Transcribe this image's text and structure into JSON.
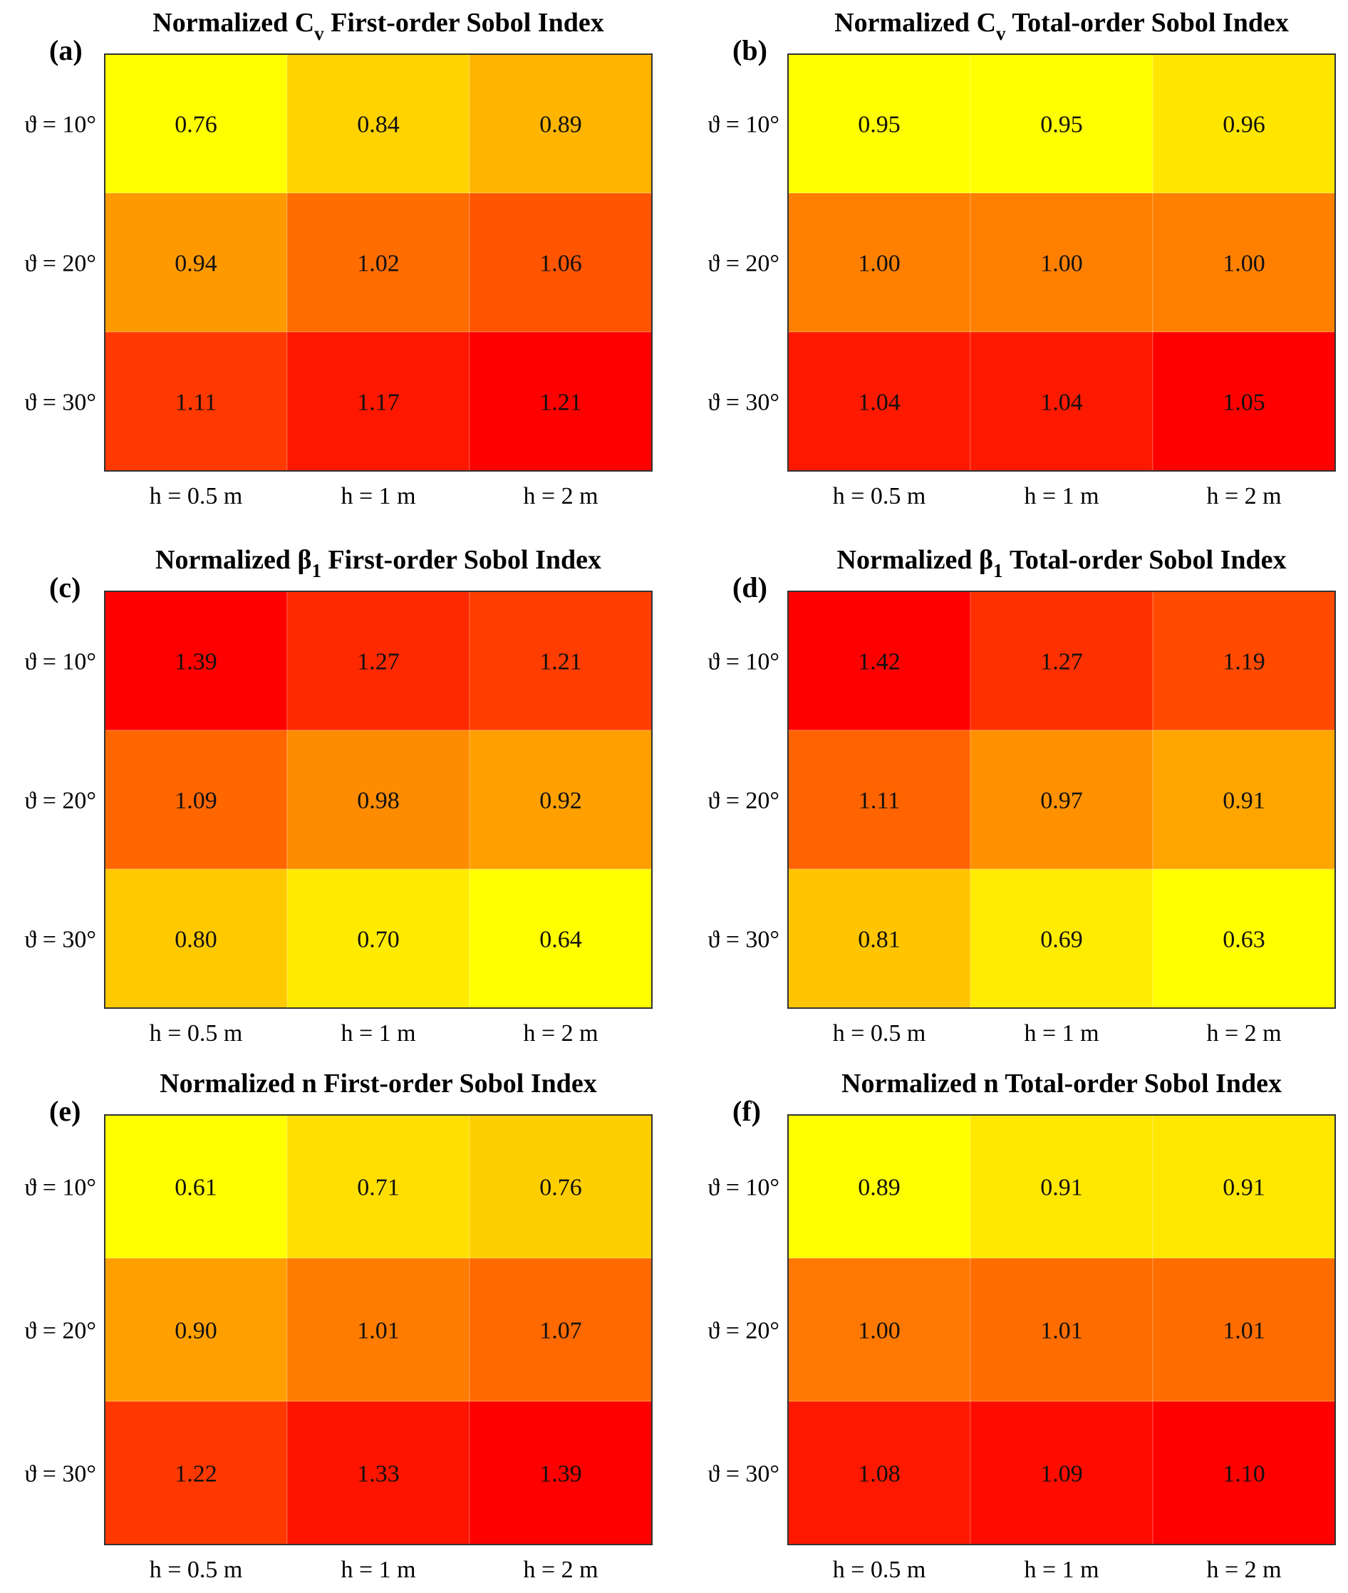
{
  "chart_data": [
    {
      "type": "heatmap",
      "panel_label": "(a)",
      "title_pre": "Normalized C",
      "title_sub": "v",
      "title_post": " First-order Sobol Index",
      "rows": [
        "ϑ = 10°",
        "ϑ = 20°",
        "ϑ = 30°"
      ],
      "cols": [
        "h = 0.5 m",
        "h = 1 m",
        "h = 2 m"
      ],
      "values": [
        [
          0.76,
          0.84,
          0.89
        ],
        [
          0.94,
          1.02,
          1.06
        ],
        [
          1.11,
          1.17,
          1.21
        ]
      ],
      "labels": [
        [
          "0.76",
          "0.84",
          "0.89"
        ],
        [
          "0.94",
          "1.02",
          "1.06"
        ],
        [
          "1.11",
          "1.17",
          "1.21"
        ]
      ]
    },
    {
      "type": "heatmap",
      "panel_label": "(b)",
      "title_pre": "Normalized C",
      "title_sub": "v",
      "title_post": " Total-order Sobol Index",
      "rows": [
        "ϑ = 10°",
        "ϑ = 20°",
        "ϑ = 30°"
      ],
      "cols": [
        "h = 0.5 m",
        "h = 1 m",
        "h = 2 m"
      ],
      "values": [
        [
          0.95,
          0.95,
          0.96
        ],
        [
          1.0,
          1.0,
          1.0
        ],
        [
          1.04,
          1.04,
          1.05
        ]
      ],
      "labels": [
        [
          "0.95",
          "0.95",
          "0.96"
        ],
        [
          "1.00",
          "1.00",
          "1.00"
        ],
        [
          "1.04",
          "1.04",
          "1.05"
        ]
      ]
    },
    {
      "type": "heatmap",
      "panel_label": "(c)",
      "title_pre": "Normalized β",
      "title_sub": "1",
      "title_post": " First-order Sobol Index",
      "rows": [
        "ϑ = 10°",
        "ϑ = 20°",
        "ϑ = 30°"
      ],
      "cols": [
        "h = 0.5 m",
        "h = 1 m",
        "h = 2 m"
      ],
      "values": [
        [
          1.39,
          1.27,
          1.21
        ],
        [
          1.09,
          0.98,
          0.92
        ],
        [
          0.8,
          0.7,
          0.64
        ]
      ],
      "labels": [
        [
          "1.39",
          "1.27",
          "1.21"
        ],
        [
          "1.09",
          "0.98",
          "0.92"
        ],
        [
          "0.80",
          "0.70",
          "0.64"
        ]
      ]
    },
    {
      "type": "heatmap",
      "panel_label": "(d)",
      "title_pre": "Normalized β",
      "title_sub": "1",
      "title_post": " Total-order Sobol Index",
      "rows": [
        "ϑ = 10°",
        "ϑ = 20°",
        "ϑ = 30°"
      ],
      "cols": [
        "h = 0.5 m",
        "h = 1 m",
        "h = 2 m"
      ],
      "values": [
        [
          1.42,
          1.27,
          1.19
        ],
        [
          1.11,
          0.97,
          0.91
        ],
        [
          0.81,
          0.69,
          0.63
        ]
      ],
      "labels": [
        [
          "1.42",
          "1.27",
          "1.19"
        ],
        [
          "1.11",
          "0.97",
          "0.91"
        ],
        [
          "0.81",
          "0.69",
          "0.63"
        ]
      ]
    },
    {
      "type": "heatmap",
      "panel_label": "(e)",
      "title_pre": "Normalized n First-order Sobol Index",
      "title_sub": "",
      "title_post": "",
      "rows": [
        "ϑ = 10°",
        "ϑ = 20°",
        "ϑ = 30°"
      ],
      "cols": [
        "h = 0.5 m",
        "h = 1 m",
        "h = 2 m"
      ],
      "values": [
        [
          0.61,
          0.71,
          0.76
        ],
        [
          0.9,
          1.01,
          1.07
        ],
        [
          1.22,
          1.33,
          1.39
        ]
      ],
      "labels": [
        [
          "0.61",
          "0.71",
          "0.76"
        ],
        [
          "0.90",
          "1.01",
          "1.07"
        ],
        [
          "1.22",
          "1.33",
          "1.39"
        ]
      ]
    },
    {
      "type": "heatmap",
      "panel_label": "(f)",
      "title_pre": "Normalized n Total-order Sobol Index",
      "title_sub": "",
      "title_post": "",
      "rows": [
        "ϑ = 10°",
        "ϑ = 20°",
        "ϑ = 30°"
      ],
      "cols": [
        "h = 0.5 m",
        "h = 1 m",
        "h = 2 m"
      ],
      "values": [
        [
          0.89,
          0.91,
          0.91
        ],
        [
          1.0,
          1.01,
          1.01
        ],
        [
          1.08,
          1.09,
          1.1
        ]
      ],
      "labels": [
        [
          "0.89",
          "0.91",
          "0.91"
        ],
        [
          "1.00",
          "1.01",
          "1.01"
        ],
        [
          "1.08",
          "1.09",
          "1.10"
        ]
      ]
    }
  ],
  "colormap": {
    "name": "autumn",
    "low_color": "#ffff00",
    "high_color": "#ff0000"
  }
}
